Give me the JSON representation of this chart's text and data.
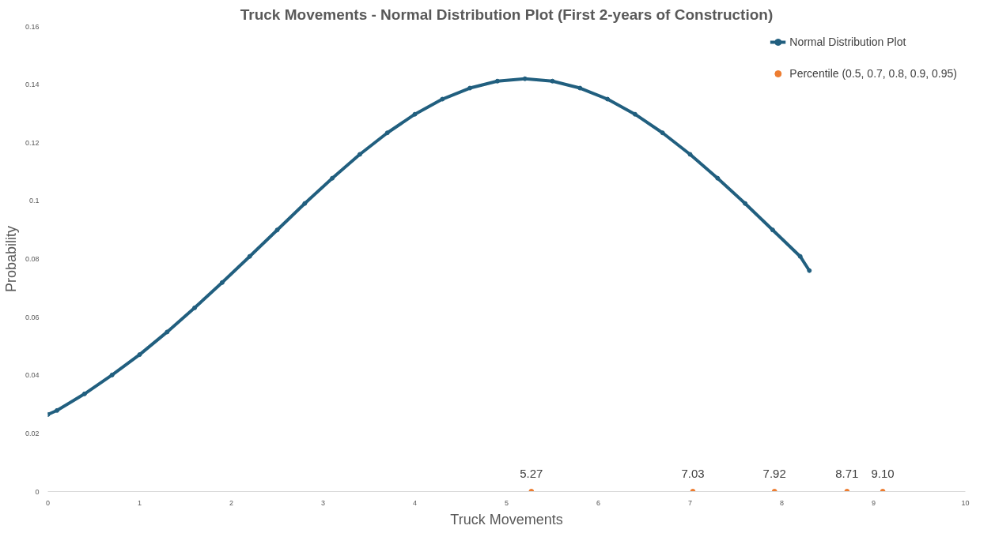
{
  "chart_data": {
    "type": "line",
    "title": "Truck Movements - Normal Distribution Plot (First 2-years of Construction)",
    "xlabel": "Truck Movements",
    "ylabel": "Probability",
    "xlim": [
      0,
      10
    ],
    "xticks": [
      0,
      1,
      2,
      3,
      4,
      5,
      6,
      7,
      8,
      9,
      10
    ],
    "ylim": [
      0,
      0.16
    ],
    "yticks": [
      0,
      0.02,
      0.04,
      0.06,
      0.08,
      {
        "value": 0.1,
        "label": "0.1"
      },
      0.12,
      0.14,
      0.16
    ],
    "grid": false,
    "legend": "top right",
    "marker": "circle",
    "line_style": "solid",
    "series": [
      {
        "name": "Normal Distribution Plot",
        "color": "#215f7f",
        "x": [
          0,
          0.1,
          0.4,
          0.7,
          1.0,
          1.3,
          1.6,
          1.9,
          2.2,
          2.5,
          2.8,
          3.1,
          3.4,
          3.7,
          4.0,
          4.3,
          4.6,
          4.9,
          5.2,
          5.5,
          5.8,
          6.1,
          6.4,
          6.7,
          7.0,
          7.3,
          7.6,
          7.9,
          8.2,
          8.3
        ],
        "values": [
          0.0265,
          0.0279,
          0.0336,
          0.0401,
          0.0471,
          0.0549,
          0.0632,
          0.0719,
          0.0809,
          0.09,
          0.0991,
          0.1078,
          0.116,
          0.1234,
          0.1298,
          0.135,
          0.1388,
          0.1412,
          0.142,
          0.1412,
          0.1388,
          0.135,
          0.1298,
          0.1234,
          0.116,
          0.1078,
          0.0991,
          0.09,
          0.0809,
          0.076
        ]
      },
      {
        "name": "Percentile (0.5, 0.7, 0.8, 0.9, 0.95)",
        "type": "scatter",
        "color": "#ed7d31",
        "x": [
          5.27,
          7.03,
          7.92,
          8.71,
          9.1
        ],
        "values": [
          0,
          0,
          0,
          0,
          0
        ]
      }
    ],
    "annotations": [
      {
        "text": "5.27",
        "x": 5.27,
        "y": 0
      },
      {
        "text": "7.03",
        "x": 7.03,
        "y": 0
      },
      {
        "text": "7.92",
        "x": 7.92,
        "y": 0
      },
      {
        "text": "8.71",
        "x": 8.71,
        "y": 0
      },
      {
        "text": "9.10",
        "x": 9.1,
        "y": 0
      }
    ]
  }
}
